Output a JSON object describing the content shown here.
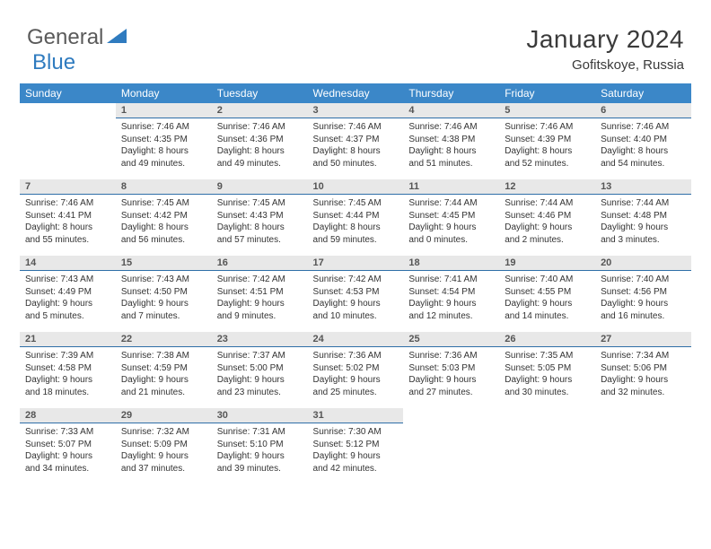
{
  "logo": {
    "general": "General",
    "blue": "Blue"
  },
  "title": "January 2024",
  "subtitle": "Gofitskoye, Russia",
  "colors": {
    "header_bg": "#3b87c8",
    "header_text": "#ffffff",
    "daynum_bg": "#e8e8e8",
    "daynum_text": "#555555",
    "rule": "#2f6fa8",
    "logo_gray": "#5a5a5a",
    "logo_blue": "#2f7bbf"
  },
  "dayNames": [
    "Sunday",
    "Monday",
    "Tuesday",
    "Wednesday",
    "Thursday",
    "Friday",
    "Saturday"
  ],
  "weeks": [
    [
      {
        "n": "",
        "lines": [
          "",
          "",
          "",
          ""
        ]
      },
      {
        "n": "1",
        "lines": [
          "Sunrise: 7:46 AM",
          "Sunset: 4:35 PM",
          "Daylight: 8 hours",
          "and 49 minutes."
        ]
      },
      {
        "n": "2",
        "lines": [
          "Sunrise: 7:46 AM",
          "Sunset: 4:36 PM",
          "Daylight: 8 hours",
          "and 49 minutes."
        ]
      },
      {
        "n": "3",
        "lines": [
          "Sunrise: 7:46 AM",
          "Sunset: 4:37 PM",
          "Daylight: 8 hours",
          "and 50 minutes."
        ]
      },
      {
        "n": "4",
        "lines": [
          "Sunrise: 7:46 AM",
          "Sunset: 4:38 PM",
          "Daylight: 8 hours",
          "and 51 minutes."
        ]
      },
      {
        "n": "5",
        "lines": [
          "Sunrise: 7:46 AM",
          "Sunset: 4:39 PM",
          "Daylight: 8 hours",
          "and 52 minutes."
        ]
      },
      {
        "n": "6",
        "lines": [
          "Sunrise: 7:46 AM",
          "Sunset: 4:40 PM",
          "Daylight: 8 hours",
          "and 54 minutes."
        ]
      }
    ],
    [
      {
        "n": "7",
        "lines": [
          "Sunrise: 7:46 AM",
          "Sunset: 4:41 PM",
          "Daylight: 8 hours",
          "and 55 minutes."
        ]
      },
      {
        "n": "8",
        "lines": [
          "Sunrise: 7:45 AM",
          "Sunset: 4:42 PM",
          "Daylight: 8 hours",
          "and 56 minutes."
        ]
      },
      {
        "n": "9",
        "lines": [
          "Sunrise: 7:45 AM",
          "Sunset: 4:43 PM",
          "Daylight: 8 hours",
          "and 57 minutes."
        ]
      },
      {
        "n": "10",
        "lines": [
          "Sunrise: 7:45 AM",
          "Sunset: 4:44 PM",
          "Daylight: 8 hours",
          "and 59 minutes."
        ]
      },
      {
        "n": "11",
        "lines": [
          "Sunrise: 7:44 AM",
          "Sunset: 4:45 PM",
          "Daylight: 9 hours",
          "and 0 minutes."
        ]
      },
      {
        "n": "12",
        "lines": [
          "Sunrise: 7:44 AM",
          "Sunset: 4:46 PM",
          "Daylight: 9 hours",
          "and 2 minutes."
        ]
      },
      {
        "n": "13",
        "lines": [
          "Sunrise: 7:44 AM",
          "Sunset: 4:48 PM",
          "Daylight: 9 hours",
          "and 3 minutes."
        ]
      }
    ],
    [
      {
        "n": "14",
        "lines": [
          "Sunrise: 7:43 AM",
          "Sunset: 4:49 PM",
          "Daylight: 9 hours",
          "and 5 minutes."
        ]
      },
      {
        "n": "15",
        "lines": [
          "Sunrise: 7:43 AM",
          "Sunset: 4:50 PM",
          "Daylight: 9 hours",
          "and 7 minutes."
        ]
      },
      {
        "n": "16",
        "lines": [
          "Sunrise: 7:42 AM",
          "Sunset: 4:51 PM",
          "Daylight: 9 hours",
          "and 9 minutes."
        ]
      },
      {
        "n": "17",
        "lines": [
          "Sunrise: 7:42 AM",
          "Sunset: 4:53 PM",
          "Daylight: 9 hours",
          "and 10 minutes."
        ]
      },
      {
        "n": "18",
        "lines": [
          "Sunrise: 7:41 AM",
          "Sunset: 4:54 PM",
          "Daylight: 9 hours",
          "and 12 minutes."
        ]
      },
      {
        "n": "19",
        "lines": [
          "Sunrise: 7:40 AM",
          "Sunset: 4:55 PM",
          "Daylight: 9 hours",
          "and 14 minutes."
        ]
      },
      {
        "n": "20",
        "lines": [
          "Sunrise: 7:40 AM",
          "Sunset: 4:56 PM",
          "Daylight: 9 hours",
          "and 16 minutes."
        ]
      }
    ],
    [
      {
        "n": "21",
        "lines": [
          "Sunrise: 7:39 AM",
          "Sunset: 4:58 PM",
          "Daylight: 9 hours",
          "and 18 minutes."
        ]
      },
      {
        "n": "22",
        "lines": [
          "Sunrise: 7:38 AM",
          "Sunset: 4:59 PM",
          "Daylight: 9 hours",
          "and 21 minutes."
        ]
      },
      {
        "n": "23",
        "lines": [
          "Sunrise: 7:37 AM",
          "Sunset: 5:00 PM",
          "Daylight: 9 hours",
          "and 23 minutes."
        ]
      },
      {
        "n": "24",
        "lines": [
          "Sunrise: 7:36 AM",
          "Sunset: 5:02 PM",
          "Daylight: 9 hours",
          "and 25 minutes."
        ]
      },
      {
        "n": "25",
        "lines": [
          "Sunrise: 7:36 AM",
          "Sunset: 5:03 PM",
          "Daylight: 9 hours",
          "and 27 minutes."
        ]
      },
      {
        "n": "26",
        "lines": [
          "Sunrise: 7:35 AM",
          "Sunset: 5:05 PM",
          "Daylight: 9 hours",
          "and 30 minutes."
        ]
      },
      {
        "n": "27",
        "lines": [
          "Sunrise: 7:34 AM",
          "Sunset: 5:06 PM",
          "Daylight: 9 hours",
          "and 32 minutes."
        ]
      }
    ],
    [
      {
        "n": "28",
        "lines": [
          "Sunrise: 7:33 AM",
          "Sunset: 5:07 PM",
          "Daylight: 9 hours",
          "and 34 minutes."
        ]
      },
      {
        "n": "29",
        "lines": [
          "Sunrise: 7:32 AM",
          "Sunset: 5:09 PM",
          "Daylight: 9 hours",
          "and 37 minutes."
        ]
      },
      {
        "n": "30",
        "lines": [
          "Sunrise: 7:31 AM",
          "Sunset: 5:10 PM",
          "Daylight: 9 hours",
          "and 39 minutes."
        ]
      },
      {
        "n": "31",
        "lines": [
          "Sunrise: 7:30 AM",
          "Sunset: 5:12 PM",
          "Daylight: 9 hours",
          "and 42 minutes."
        ]
      },
      {
        "n": "",
        "lines": [
          "",
          "",
          "",
          ""
        ]
      },
      {
        "n": "",
        "lines": [
          "",
          "",
          "",
          ""
        ]
      },
      {
        "n": "",
        "lines": [
          "",
          "",
          "",
          ""
        ]
      }
    ]
  ]
}
